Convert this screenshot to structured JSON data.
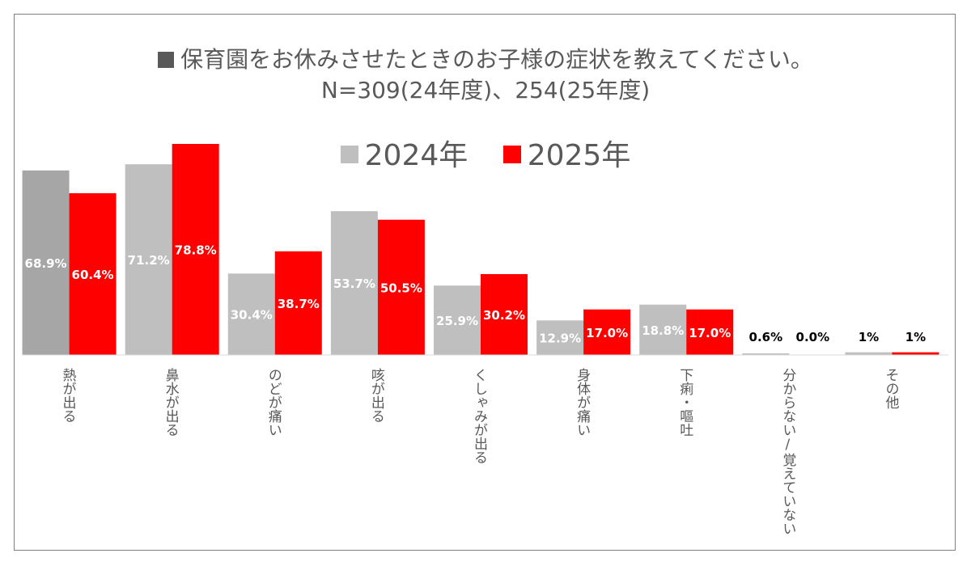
{
  "chart_data": {
    "type": "bar",
    "title": "保育園をお休みさせたときのお子様の症状を教えてください。",
    "subtitle": "N=309(24年度)、254(25年度)",
    "legend_position": "top",
    "categories": [
      "熱が出る",
      "鼻水が出る",
      "のどが痛い",
      "咳が出る",
      "くしゃみが出る",
      "身体が痛い",
      "下痢・嘔吐",
      "分からない/覚えていない",
      "その他"
    ],
    "series": [
      {
        "name": "2024年",
        "color": "#bfbfbf",
        "values": [
          68.9,
          71.2,
          30.4,
          53.7,
          25.9,
          12.9,
          18.8,
          0.6,
          1
        ],
        "labels": [
          "68.9%",
          "71.2%",
          "30.4%",
          "53.7%",
          "25.9%",
          "12.9%",
          "18.8%",
          "0.6%",
          "1%"
        ]
      },
      {
        "name": "2025年",
        "color": "#ff0000",
        "values": [
          60.4,
          78.8,
          38.7,
          50.5,
          30.2,
          17.0,
          17.0,
          0.0,
          1
        ],
        "labels": [
          "60.4%",
          "78.8%",
          "38.7%",
          "50.5%",
          "30.2%",
          "17.0%",
          "17.0%",
          "0.0%",
          "1%"
        ]
      }
    ],
    "highlight_first_color": "#a6a6a6",
    "ylim": [
      0,
      80
    ],
    "grid": false
  }
}
